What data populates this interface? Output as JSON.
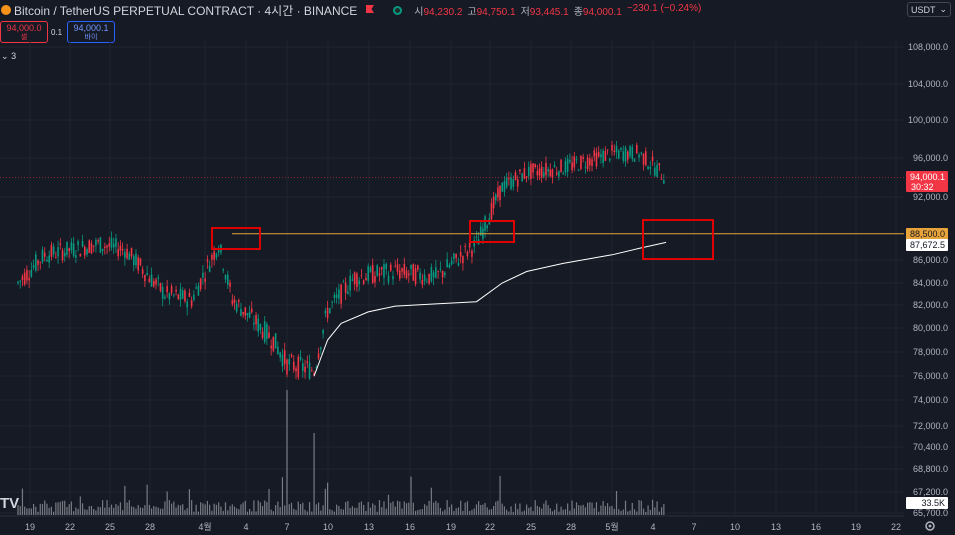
{
  "header": {
    "title": "Bitcoin / TetherUS PERPETUAL CONTRACT · 4시간 · BINANCE",
    "ohlc": [
      {
        "label": "시",
        "value": "94,230.2"
      },
      {
        "label": "고",
        "value": "94,750.1"
      },
      {
        "label": "저",
        "value": "93,445.1"
      },
      {
        "label": "종",
        "value": "94,000.1"
      }
    ],
    "change": "−230.1 (−0.24%)"
  },
  "currency": {
    "label": "USDT"
  },
  "trade": {
    "sell_price": "94,000.0",
    "sell_label": "셀",
    "spread": "0.1",
    "buy_price": "94,000.1",
    "buy_label": "바이"
  },
  "indicators": {
    "count": "3"
  },
  "price_axis": {
    "ticks": [
      "108,000.0",
      "104,000.0",
      "100,000.0",
      "96,000.0",
      "92,000.0",
      "86,000.0",
      "84,000.0",
      "82,000.0",
      "80,000.0",
      "78,000.0",
      "76,000.0",
      "74,000.0",
      "72,000.0",
      "70,400.0",
      "68,800.0",
      "67,200.0",
      "65,700.0"
    ],
    "current_price": "94,000.1",
    "countdown": "30:32",
    "level_label": "88,500.0",
    "vwap_label": "87,672.5",
    "volume_label": "33.5K"
  },
  "time_axis": {
    "ticks": [
      "19",
      "22",
      "25",
      "28",
      "4월",
      "4",
      "7",
      "10",
      "13",
      "16",
      "19",
      "22",
      "25",
      "28",
      "5월",
      "4",
      "7",
      "10",
      "13",
      "16",
      "19",
      "22"
    ]
  },
  "colors": {
    "up": "#089981",
    "down": "#f23645",
    "level": "#e8a33a",
    "background": "#161a25",
    "box": "#e00000"
  },
  "watermark": "TV",
  "chart_data": {
    "type": "candlestick",
    "series": "BTCUSDT 4h",
    "ylim": [
      65700,
      108000
    ],
    "key_level": 88500,
    "last_price": 94000.1,
    "vwap_last": 87672.5,
    "anchor_points": [
      {
        "date": "03-18",
        "price": 84000
      },
      {
        "date": "03-20",
        "price": 86500
      },
      {
        "date": "03-24",
        "price": 87500
      },
      {
        "date": "03-26",
        "price": 87000
      },
      {
        "date": "03-29",
        "price": 83000
      },
      {
        "date": "03-31",
        "price": 82500
      },
      {
        "date": "04-02",
        "price": 87500
      },
      {
        "date": "04-03",
        "price": 82500
      },
      {
        "date": "04-06",
        "price": 79000
      },
      {
        "date": "04-07",
        "price": 77000
      },
      {
        "date": "04-09",
        "price": 76500
      },
      {
        "date": "04-10",
        "price": 81500
      },
      {
        "date": "04-12",
        "price": 84500
      },
      {
        "date": "04-15",
        "price": 85000
      },
      {
        "date": "04-18",
        "price": 84500
      },
      {
        "date": "04-21",
        "price": 87500
      },
      {
        "date": "04-23",
        "price": 93000
      },
      {
        "date": "04-25",
        "price": 94500
      },
      {
        "date": "04-28",
        "price": 95000
      },
      {
        "date": "05-01",
        "price": 96500
      },
      {
        "date": "05-03",
        "price": 96500
      },
      {
        "date": "05-05",
        "price": 94000
      }
    ],
    "volume_spikes": [
      {
        "date": "04-07",
        "label": "largest"
      },
      {
        "date": "04-09",
        "label": "large"
      }
    ]
  }
}
